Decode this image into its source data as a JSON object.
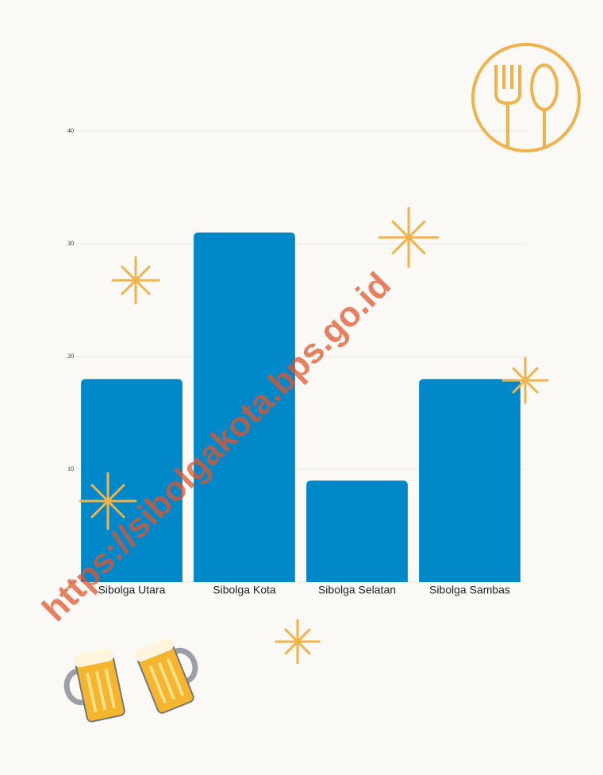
{
  "chart_data": {
    "type": "bar",
    "categories": [
      "Sibolga Utara",
      "Sibolga Kota",
      "Sibolga Selatan",
      "Sibolga Sambas"
    ],
    "values": [
      18,
      31,
      9,
      18
    ],
    "color": "#0088c8",
    "ylim": [
      0,
      40
    ],
    "yticks": [
      0,
      10,
      20,
      30,
      40
    ],
    "grid": true,
    "watermark": "https://sibolgakota.bps.go.id"
  }
}
